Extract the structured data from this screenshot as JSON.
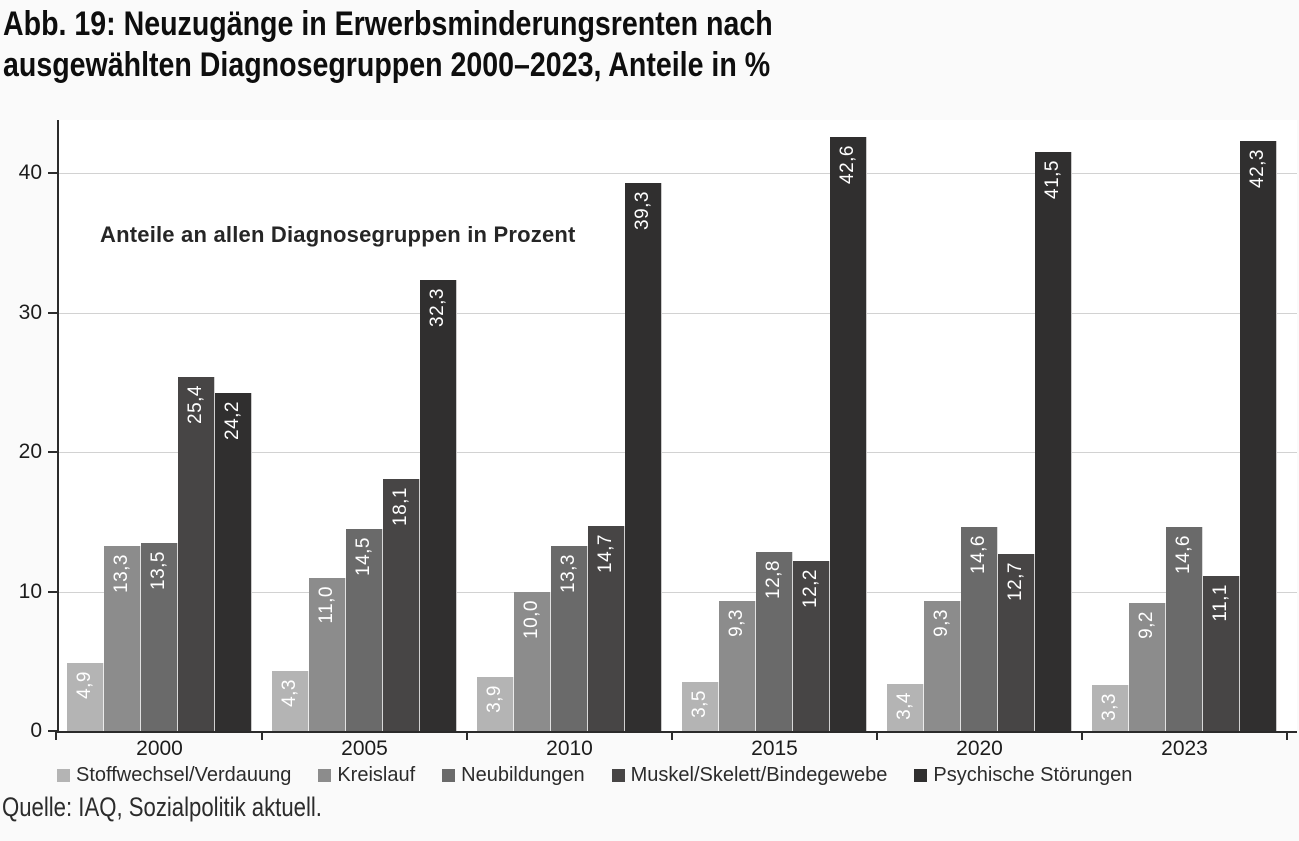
{
  "title": {
    "line1": "Abb. 19: Neuzugänge in Erwerbsminderungsrenten nach",
    "line2": "ausgewählten Diagnosegruppen 2000–2023, Anteile in %"
  },
  "annotation": "Anteile an allen Diagnosegruppen in Prozent",
  "source": "Quelle: IAQ, Sozialpolitik aktuell.",
  "colors": {
    "axis": "#2b2b2b",
    "gridline": "#d2d2d2",
    "plot_background": "#ffffff",
    "page_background": "#fafafa",
    "bar_value_label": "#ffffff"
  },
  "chart_data": {
    "type": "bar",
    "title": "Abb. 19: Neuzugänge in Erwerbsminderungsrenten nach ausgewählten Diagnosegruppen 2000–2023, Anteile in %",
    "xlabel": "",
    "ylabel": "",
    "ylim": [
      0,
      43.8
    ],
    "yticks": [
      0,
      10,
      20,
      30,
      40
    ],
    "ytick_labels": [
      "0",
      "10",
      "20",
      "30",
      "40"
    ],
    "grid": true,
    "legend_position": "bottom",
    "categories": [
      "2000",
      "2005",
      "2010",
      "2015",
      "2020",
      "2023"
    ],
    "series": [
      {
        "name": "Stoffwechsel/Verdauung",
        "color": "#b4b4b4",
        "values": [
          4.9,
          4.3,
          3.9,
          3.5,
          3.4,
          3.3
        ],
        "labels": [
          "4,9",
          "4,3",
          "3,9",
          "3,5",
          "3,4",
          "3,3"
        ]
      },
      {
        "name": "Kreislauf",
        "color": "#8c8c8c",
        "values": [
          13.3,
          11.0,
          10.0,
          9.3,
          9.3,
          9.2
        ],
        "labels": [
          "13,3",
          "11,0",
          "10,0",
          "9,3",
          "9,3",
          "9,2"
        ]
      },
      {
        "name": "Neubildungen",
        "color": "#6a6a6a",
        "values": [
          13.5,
          14.5,
          13.3,
          12.8,
          14.6,
          14.6
        ],
        "labels": [
          "13,5",
          "14,5",
          "13,3",
          "12,8",
          "14,6",
          "14,6"
        ]
      },
      {
        "name": "Muskel/Skelett/Bindegewebe",
        "color": "#474545",
        "values": [
          25.4,
          18.1,
          14.7,
          12.2,
          12.7,
          11.1
        ],
        "labels": [
          "25,4",
          "18,1",
          "14,7",
          "12,2",
          "12,7",
          "11,1"
        ]
      },
      {
        "name": "Psychische Störungen",
        "color": "#302f2f",
        "values": [
          24.2,
          32.3,
          39.3,
          42.6,
          41.5,
          42.3
        ],
        "labels": [
          "24,2",
          "32,3",
          "39,3",
          "42,6",
          "41,5",
          "42,3"
        ]
      }
    ]
  }
}
